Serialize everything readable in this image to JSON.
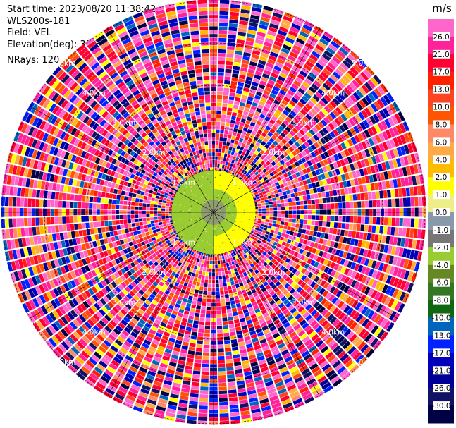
{
  "info": {
    "start_time": "Start time: 2023/08/20 11:38:42",
    "instrument": "WLS200s-181",
    "field": "Field: VEL",
    "elevation": "Elevation(deg): 35.30",
    "nrays": "NRays: 120"
  },
  "colorbar": {
    "unit": "m/s",
    "ticks": [
      "26.0",
      "21.0",
      "17.0",
      "13.0",
      "10.0",
      "8.0",
      "6.0",
      "4.0",
      "2.0",
      "1.0",
      "0.0",
      "-1.0",
      "-2.0",
      "-4.0",
      "-6.0",
      "-8.0",
      "-10.0",
      "-13.0",
      "-17.0",
      "-21.0",
      "-26.0",
      "-30.0"
    ],
    "colors": [
      "#ff66cc",
      "#ff2299",
      "#ff0033",
      "#ff2200",
      "#ff4422",
      "#ff5500",
      "#ff8866",
      "#ffaa44",
      "#ffbb00",
      "#ffff00",
      "#eeee88",
      "#8899aa",
      "#777777",
      "#99cc33",
      "#668822",
      "#337722",
      "#116611",
      "#0066bb",
      "#0022ff",
      "#0000bb",
      "#000099",
      "#111166",
      "#000044"
    ]
  },
  "chart_data": {
    "type": "heatmap",
    "subtype": "polar-ppi",
    "field": "VEL",
    "units": "m/s",
    "nrays": 120,
    "range_rings_km": [
      "1.0km",
      "2.0km",
      "3.0km",
      "4.0km",
      "5.0km"
    ],
    "near_range_pattern": {
      "km_max": 1.0,
      "positive_sector": "east",
      "positive_value_ms": 2.0,
      "negative_value_ms": -2.0
    },
    "far_range": "noise",
    "vmin": -30.0,
    "vmax": 26.0
  }
}
